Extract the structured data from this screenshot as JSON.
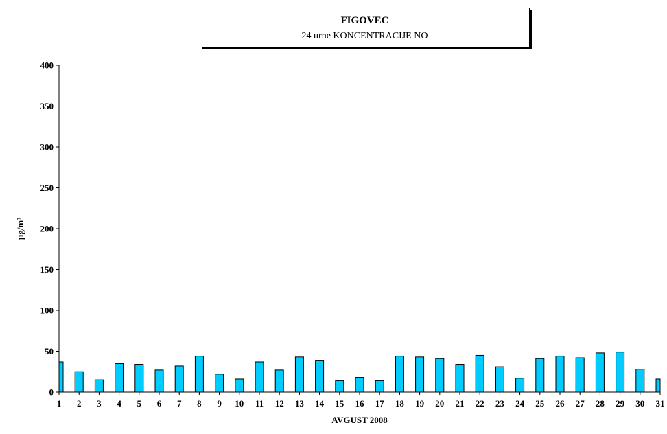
{
  "chart_data": {
    "type": "bar",
    "title": "FIGOVEC",
    "subtitle": "24 urne KONCENTRACIJE NO",
    "xlabel": "AVGUST 2008",
    "ylabel": "µg/m³",
    "ylim": [
      0,
      400
    ],
    "yticks": [
      0,
      50,
      100,
      150,
      200,
      250,
      300,
      350,
      400
    ],
    "categories": [
      "1",
      "2",
      "3",
      "4",
      "5",
      "6",
      "7",
      "8",
      "9",
      "10",
      "11",
      "12",
      "13",
      "14",
      "15",
      "16",
      "17",
      "18",
      "19",
      "20",
      "21",
      "22",
      "23",
      "24",
      "25",
      "26",
      "27",
      "28",
      "29",
      "30",
      "31"
    ],
    "values": [
      37,
      25,
      15,
      35,
      34,
      27,
      32,
      44,
      22,
      16,
      37,
      27,
      43,
      39,
      14,
      18,
      14,
      44,
      43,
      41,
      34,
      45,
      31,
      17,
      41,
      44,
      42,
      48,
      49,
      28,
      16
    ],
    "bar_color": "#00CCFF",
    "grid": false
  }
}
